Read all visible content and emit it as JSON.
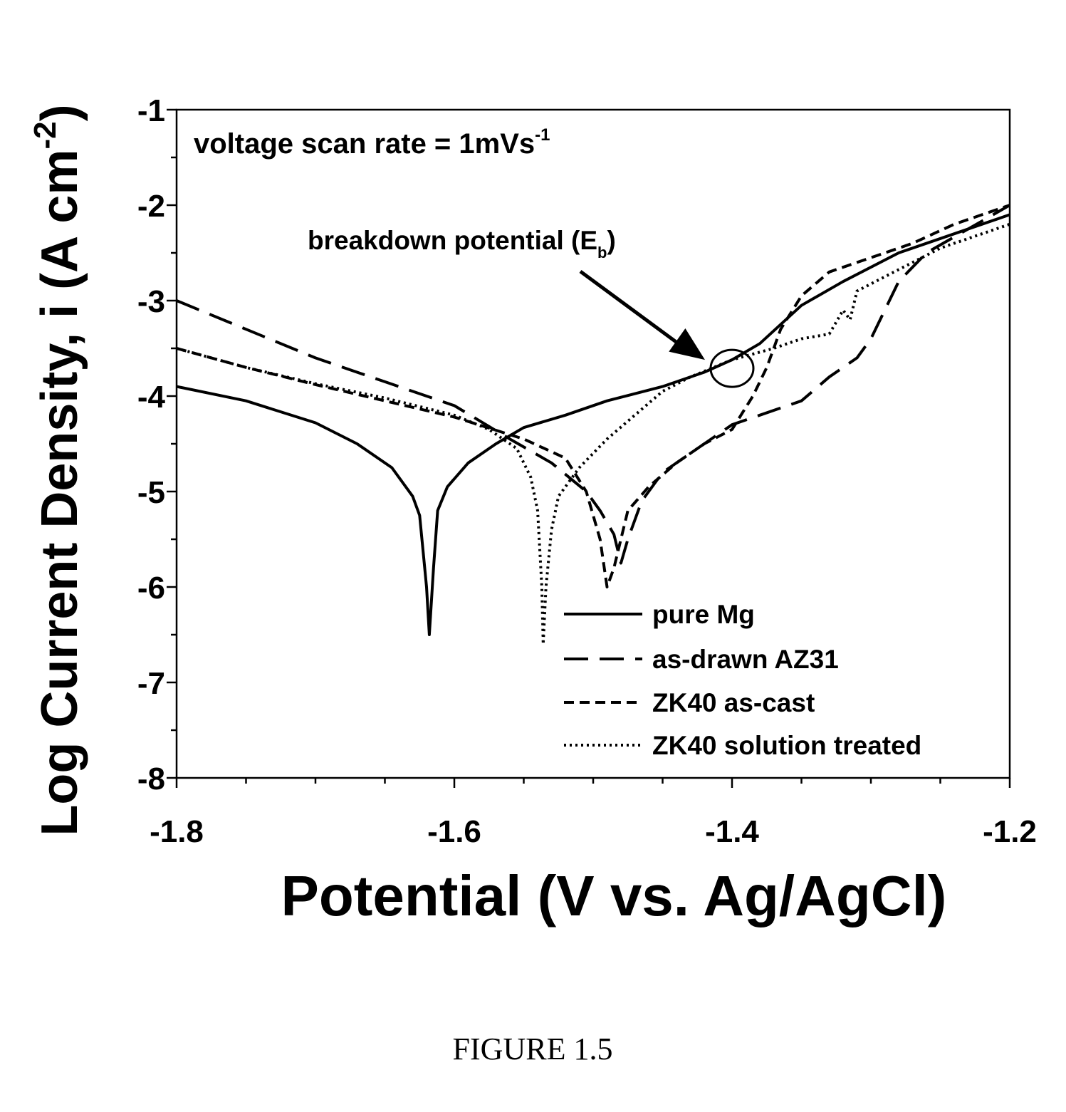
{
  "figure_caption": "FIGURE 1.5",
  "chart_data": {
    "type": "line",
    "title": "",
    "xlabel": "Potential (V vs. Ag/AgCl)",
    "ylabel_main": "Log Current Density, i (A cm",
    "ylabel_sup": "-2",
    "ylabel_end": ")",
    "xlim": [
      -1.8,
      -1.2
    ],
    "ylim": [
      -8,
      -1
    ],
    "x_ticks": [
      "-1.8",
      "-1.6",
      "-1.4",
      "-1.2"
    ],
    "y_ticks": [
      "-1",
      "-2",
      "-3",
      "-4",
      "-5",
      "-6",
      "-7",
      "-8"
    ],
    "grid": false,
    "legend_position": "bottom-right",
    "annotations": {
      "scan_rate_main": "voltage scan rate = 1mVs",
      "scan_rate_sup": "-1",
      "breakdown_main": "breakdown potential (E",
      "breakdown_sub": "b",
      "breakdown_end": ")",
      "breakdown_point": {
        "x": -1.4,
        "y": -3.65
      }
    },
    "series": [
      {
        "name": "pure Mg",
        "style": "solid",
        "points": [
          [
            -1.8,
            -3.9
          ],
          [
            -1.75,
            -4.05
          ],
          [
            -1.7,
            -4.28
          ],
          [
            -1.67,
            -4.5
          ],
          [
            -1.645,
            -4.75
          ],
          [
            -1.63,
            -5.05
          ],
          [
            -1.625,
            -5.25
          ],
          [
            -1.62,
            -6.0
          ],
          [
            -1.618,
            -6.5
          ],
          [
            -1.615,
            -5.8
          ],
          [
            -1.612,
            -5.2
          ],
          [
            -1.605,
            -4.95
          ],
          [
            -1.59,
            -4.7
          ],
          [
            -1.57,
            -4.5
          ],
          [
            -1.55,
            -4.33
          ],
          [
            -1.52,
            -4.2
          ],
          [
            -1.49,
            -4.05
          ],
          [
            -1.45,
            -3.9
          ],
          [
            -1.42,
            -3.75
          ],
          [
            -1.4,
            -3.62
          ],
          [
            -1.38,
            -3.45
          ],
          [
            -1.35,
            -3.05
          ],
          [
            -1.32,
            -2.8
          ],
          [
            -1.28,
            -2.5
          ],
          [
            -1.24,
            -2.3
          ],
          [
            -1.2,
            -2.1
          ]
        ]
      },
      {
        "name": "as-drawn AZ31",
        "style": "long-dash",
        "points": [
          [
            -1.8,
            -3.0
          ],
          [
            -1.75,
            -3.3
          ],
          [
            -1.7,
            -3.6
          ],
          [
            -1.65,
            -3.85
          ],
          [
            -1.6,
            -4.1
          ],
          [
            -1.56,
            -4.45
          ],
          [
            -1.53,
            -4.7
          ],
          [
            -1.505,
            -5.0
          ],
          [
            -1.495,
            -5.2
          ],
          [
            -1.485,
            -5.45
          ],
          [
            -1.48,
            -5.75
          ],
          [
            -1.475,
            -5.5
          ],
          [
            -1.465,
            -5.1
          ],
          [
            -1.45,
            -4.8
          ],
          [
            -1.42,
            -4.5
          ],
          [
            -1.4,
            -4.3
          ],
          [
            -1.38,
            -4.2
          ],
          [
            -1.35,
            -4.05
          ],
          [
            -1.33,
            -3.8
          ],
          [
            -1.31,
            -3.6
          ],
          [
            -1.3,
            -3.4
          ],
          [
            -1.29,
            -3.1
          ],
          [
            -1.28,
            -2.8
          ],
          [
            -1.26,
            -2.5
          ],
          [
            -1.23,
            -2.25
          ],
          [
            -1.2,
            -2.0
          ]
        ]
      },
      {
        "name": "ZK40 as-cast",
        "style": "short-dash",
        "points": [
          [
            -1.8,
            -3.5
          ],
          [
            -1.75,
            -3.7
          ],
          [
            -1.7,
            -3.88
          ],
          [
            -1.65,
            -4.05
          ],
          [
            -1.6,
            -4.22
          ],
          [
            -1.55,
            -4.45
          ],
          [
            -1.52,
            -4.65
          ],
          [
            -1.505,
            -5.0
          ],
          [
            -1.495,
            -5.5
          ],
          [
            -1.49,
            -6.0
          ],
          [
            -1.485,
            -5.8
          ],
          [
            -1.475,
            -5.2
          ],
          [
            -1.46,
            -4.95
          ],
          [
            -1.44,
            -4.7
          ],
          [
            -1.42,
            -4.5
          ],
          [
            -1.4,
            -4.35
          ],
          [
            -1.385,
            -4.0
          ],
          [
            -1.375,
            -3.7
          ],
          [
            -1.365,
            -3.3
          ],
          [
            -1.35,
            -2.95
          ],
          [
            -1.33,
            -2.7
          ],
          [
            -1.3,
            -2.55
          ],
          [
            -1.27,
            -2.4
          ],
          [
            -1.24,
            -2.2
          ],
          [
            -1.2,
            -2.0
          ]
        ]
      },
      {
        "name": "ZK40 solution treated",
        "style": "dotted",
        "points": [
          [
            -1.8,
            -3.5
          ],
          [
            -1.75,
            -3.7
          ],
          [
            -1.7,
            -3.87
          ],
          [
            -1.65,
            -4.02
          ],
          [
            -1.6,
            -4.2
          ],
          [
            -1.575,
            -4.35
          ],
          [
            -1.555,
            -4.55
          ],
          [
            -1.545,
            -4.85
          ],
          [
            -1.54,
            -5.2
          ],
          [
            -1.537,
            -6.0
          ],
          [
            -1.536,
            -6.6
          ],
          [
            -1.534,
            -6.0
          ],
          [
            -1.53,
            -5.4
          ],
          [
            -1.525,
            -5.05
          ],
          [
            -1.51,
            -4.75
          ],
          [
            -1.49,
            -4.45
          ],
          [
            -1.47,
            -4.2
          ],
          [
            -1.45,
            -3.95
          ],
          [
            -1.43,
            -3.8
          ],
          [
            -1.4,
            -3.62
          ],
          [
            -1.37,
            -3.5
          ],
          [
            -1.35,
            -3.4
          ],
          [
            -1.33,
            -3.35
          ],
          [
            -1.32,
            -3.1
          ],
          [
            -1.315,
            -3.2
          ],
          [
            -1.31,
            -2.9
          ],
          [
            -1.29,
            -2.75
          ],
          [
            -1.25,
            -2.45
          ],
          [
            -1.22,
            -2.3
          ],
          [
            -1.2,
            -2.2
          ]
        ]
      }
    ]
  }
}
